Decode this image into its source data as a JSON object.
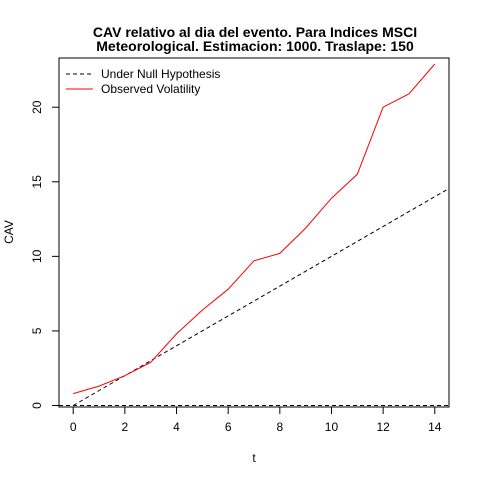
{
  "chart_data": {
    "type": "line",
    "title_lines": [
      "CAV relativo al dia del evento. Para Indices MSCI",
      "Meteorological. Estimacion: 1000. Traslape: 150"
    ],
    "xlabel": "t",
    "ylabel": "CAV",
    "xlim": [
      -0.55,
      14.55
    ],
    "ylim": [
      -0.1,
      23.3
    ],
    "x_ticks": [
      0,
      2,
      4,
      6,
      8,
      10,
      12,
      14
    ],
    "y_ticks": [
      0,
      5,
      10,
      15,
      20
    ],
    "legend_position": "top-left",
    "series": [
      {
        "name": "Under Null Hypothesis",
        "color": "#000000",
        "dash": "dashed",
        "x": [
          0,
          14.55
        ],
        "y": [
          0,
          14.55
        ]
      },
      {
        "name": "Observed Volatility",
        "color": "#ff0000",
        "dash": "solid",
        "x": [
          0,
          1,
          2,
          3,
          4,
          5,
          6,
          7,
          8,
          9,
          10,
          11,
          12,
          13,
          14
        ],
        "y": [
          0.8,
          1.3,
          2.0,
          2.9,
          4.8,
          6.4,
          7.8,
          9.7,
          10.2,
          11.9,
          13.9,
          15.5,
          20.0,
          20.9,
          22.9
        ]
      }
    ],
    "reference_lines": [
      {
        "y": 0,
        "color": "#000000",
        "dash": "dashed"
      }
    ]
  }
}
